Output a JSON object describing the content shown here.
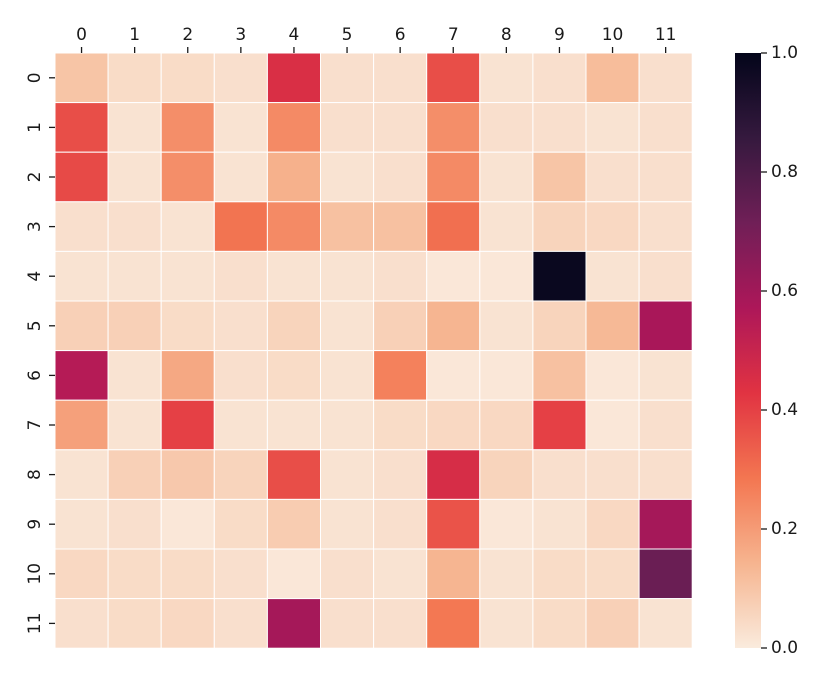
{
  "chart_data": {
    "type": "heatmap",
    "title": "",
    "xlabel": "",
    "ylabel": "",
    "x_ticks": [
      "0",
      "1",
      "2",
      "3",
      "4",
      "5",
      "6",
      "7",
      "8",
      "9",
      "10",
      "11"
    ],
    "y_ticks": [
      "0",
      "1",
      "2",
      "3",
      "4",
      "5",
      "6",
      "7",
      "8",
      "9",
      "10",
      "11"
    ],
    "x_axis_position": "top",
    "values": [
      [
        0.1,
        0.04,
        0.04,
        0.03,
        0.45,
        0.03,
        0.03,
        0.37,
        0.02,
        0.03,
        0.12,
        0.03
      ],
      [
        0.37,
        0.02,
        0.23,
        0.02,
        0.24,
        0.03,
        0.03,
        0.23,
        0.03,
        0.03,
        0.02,
        0.03
      ],
      [
        0.38,
        0.02,
        0.23,
        0.02,
        0.15,
        0.02,
        0.03,
        0.24,
        0.02,
        0.1,
        0.03,
        0.03
      ],
      [
        0.03,
        0.03,
        0.02,
        0.29,
        0.24,
        0.11,
        0.11,
        0.3,
        0.02,
        0.06,
        0.05,
        0.03
      ],
      [
        0.02,
        0.02,
        0.02,
        0.03,
        0.02,
        0.02,
        0.03,
        0.01,
        0.01,
        0.98,
        0.02,
        0.03
      ],
      [
        0.07,
        0.07,
        0.04,
        0.03,
        0.06,
        0.02,
        0.07,
        0.14,
        0.02,
        0.06,
        0.13,
        0.58
      ],
      [
        0.55,
        0.02,
        0.17,
        0.03,
        0.04,
        0.02,
        0.26,
        0.01,
        0.01,
        0.11,
        0.01,
        0.02
      ],
      [
        0.19,
        0.02,
        0.4,
        0.02,
        0.02,
        0.02,
        0.04,
        0.05,
        0.05,
        0.4,
        0.01,
        0.03
      ],
      [
        0.02,
        0.07,
        0.09,
        0.06,
        0.37,
        0.02,
        0.03,
        0.46,
        0.06,
        0.03,
        0.03,
        0.03
      ],
      [
        0.02,
        0.03,
        0.01,
        0.04,
        0.08,
        0.02,
        0.03,
        0.36,
        0.01,
        0.02,
        0.05,
        0.59
      ],
      [
        0.05,
        0.04,
        0.04,
        0.03,
        0.01,
        0.03,
        0.02,
        0.14,
        0.02,
        0.04,
        0.04,
        0.73
      ],
      [
        0.03,
        0.04,
        0.05,
        0.03,
        0.59,
        0.03,
        0.03,
        0.28,
        0.02,
        0.04,
        0.07,
        0.02
      ]
    ],
    "colorbar": {
      "range": [
        0.0,
        1.0
      ],
      "ticks": [
        0.0,
        0.2,
        0.4,
        0.6,
        0.8,
        1.0
      ],
      "tick_labels": [
        "0.0",
        "0.2",
        "0.4",
        "0.6",
        "0.8",
        "1.0"
      ],
      "colormap": "rocket_r",
      "stops": [
        "#faebdd",
        "#f6b48f",
        "#f37651",
        "#e13342",
        "#ad1759",
        "#701f57",
        "#35193e",
        "#03051a"
      ]
    },
    "grid_line_color": "#ffffff"
  }
}
